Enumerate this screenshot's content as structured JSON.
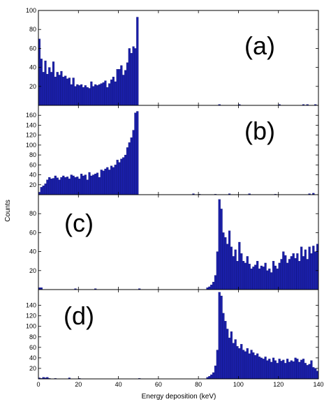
{
  "chart_data": {
    "type": "bar",
    "xlabel": "Energy deposition (keV)",
    "ylabel": "Counts",
    "xlim": [
      0,
      140
    ],
    "x_ticks": [
      0,
      20,
      40,
      60,
      80,
      100,
      120,
      140
    ],
    "bar_color": "#1a1fa8",
    "edge_color": "#0a0d6e",
    "bin_width": 1,
    "panels": [
      {
        "tag": "(a)",
        "ylim": [
          0,
          100
        ],
        "y_ticks": [
          20,
          40,
          60,
          80,
          100
        ],
        "x": [
          0,
          1,
          2,
          3,
          4,
          5,
          6,
          7,
          8,
          9,
          10,
          11,
          12,
          13,
          14,
          15,
          16,
          17,
          18,
          19,
          20,
          21,
          22,
          23,
          24,
          25,
          26,
          27,
          28,
          29,
          30,
          31,
          32,
          33,
          34,
          35,
          36,
          37,
          38,
          39,
          40,
          41,
          42,
          43,
          44,
          45,
          46,
          47,
          48,
          49,
          90,
          100,
          120,
          132,
          134,
          138
        ],
        "values": [
          70,
          49,
          35,
          47,
          33,
          40,
          35,
          46,
          30,
          35,
          32,
          36,
          30,
          31,
          28,
          29,
          22,
          29,
          20,
          22,
          21,
          22,
          19,
          21,
          19,
          18,
          25,
          20,
          22,
          21,
          22,
          23,
          24,
          26,
          19,
          23,
          27,
          30,
          25,
          38,
          38,
          42,
          32,
          37,
          45,
          60,
          55,
          62,
          60,
          93,
          1,
          1,
          1,
          1,
          1,
          1
        ]
      },
      {
        "tag": "(b)",
        "ylim": [
          0,
          180
        ],
        "y_ticks": [
          20,
          40,
          60,
          80,
          100,
          120,
          140,
          160
        ],
        "x": [
          0,
          1,
          2,
          3,
          4,
          5,
          6,
          7,
          8,
          9,
          10,
          11,
          12,
          13,
          14,
          15,
          16,
          17,
          18,
          19,
          20,
          21,
          22,
          23,
          24,
          25,
          26,
          27,
          28,
          29,
          30,
          31,
          32,
          33,
          34,
          35,
          36,
          37,
          38,
          39,
          40,
          41,
          42,
          43,
          44,
          45,
          46,
          47,
          48,
          49,
          77,
          80,
          88,
          95,
          105,
          118,
          135,
          137
        ],
        "values": [
          5,
          15,
          18,
          22,
          30,
          35,
          32,
          33,
          38,
          34,
          30,
          35,
          38,
          35,
          36,
          32,
          40,
          38,
          35,
          36,
          32,
          42,
          38,
          40,
          30,
          45,
          38,
          40,
          42,
          44,
          35,
          50,
          48,
          52,
          55,
          50,
          58,
          55,
          60,
          70,
          65,
          72,
          75,
          80,
          95,
          105,
          115,
          130,
          165,
          168,
          2,
          1,
          1,
          2,
          2,
          1,
          2,
          3
        ]
      },
      {
        "tag": "(c)",
        "ylim": [
          0,
          100
        ],
        "y_ticks": [
          20,
          40,
          60,
          80
        ],
        "x": [
          0,
          1,
          18,
          28,
          50,
          84,
          85,
          86,
          87,
          88,
          89,
          90,
          91,
          92,
          93,
          94,
          95,
          96,
          97,
          98,
          99,
          100,
          101,
          102,
          103,
          104,
          105,
          106,
          107,
          108,
          109,
          110,
          111,
          112,
          113,
          114,
          115,
          116,
          117,
          118,
          119,
          120,
          121,
          122,
          123,
          124,
          125,
          126,
          127,
          128,
          129,
          130,
          131,
          132,
          133,
          134,
          135,
          136,
          137,
          138,
          139
        ],
        "values": [
          2,
          2,
          1,
          1,
          1,
          2,
          3,
          5,
          8,
          15,
          40,
          95,
          85,
          60,
          55,
          48,
          62,
          45,
          35,
          42,
          30,
          50,
          38,
          30,
          28,
          35,
          27,
          22,
          24,
          26,
          30,
          22,
          25,
          24,
          28,
          20,
          22,
          18,
          30,
          25,
          22,
          28,
          32,
          40,
          36,
          28,
          32,
          35,
          38,
          33,
          38,
          30,
          45,
          35,
          42,
          32,
          45,
          38,
          46,
          40,
          48
        ]
      },
      {
        "tag": "(d)",
        "ylim": [
          0,
          170
        ],
        "y_ticks": [
          20,
          40,
          60,
          80,
          100,
          120,
          140
        ],
        "x": [
          0,
          1,
          2,
          3,
          4,
          5,
          8,
          15,
          20,
          50,
          84,
          85,
          86,
          87,
          88,
          89,
          90,
          91,
          92,
          93,
          94,
          95,
          96,
          97,
          98,
          99,
          100,
          101,
          102,
          103,
          104,
          105,
          106,
          107,
          108,
          109,
          110,
          111,
          112,
          113,
          114,
          115,
          116,
          117,
          118,
          119,
          120,
          121,
          122,
          123,
          124,
          125,
          126,
          127,
          128,
          129,
          130,
          131,
          132,
          133,
          134,
          135,
          136,
          137,
          138,
          139
        ],
        "values": [
          2,
          1,
          3,
          2,
          3,
          1,
          1,
          2,
          1,
          1,
          3,
          5,
          8,
          12,
          25,
          55,
          165,
          158,
          125,
          110,
          95,
          78,
          90,
          68,
          75,
          62,
          58,
          66,
          55,
          52,
          58,
          48,
          55,
          50,
          45,
          48,
          42,
          40,
          38,
          42,
          35,
          38,
          32,
          40,
          35,
          30,
          38,
          34,
          36,
          30,
          38,
          32,
          35,
          33,
          40,
          38,
          32,
          36,
          38,
          30,
          26,
          28,
          35,
          22,
          20,
          15
        ]
      }
    ]
  }
}
